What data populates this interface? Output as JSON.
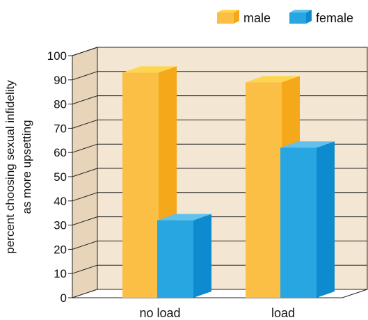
{
  "chart_data": {
    "type": "bar",
    "title": "",
    "categories": [
      "no load",
      "load"
    ],
    "series": [
      {
        "name": "male",
        "values": [
          93,
          89
        ],
        "color": "#FBBF45",
        "side_color": "#F5A81A",
        "top_color": "#FDD64E"
      },
      {
        "name": "female",
        "values": [
          32,
          62
        ],
        "color": "#27A6E2",
        "side_color": "#0E8BCF",
        "top_color": "#62C0EC"
      }
    ],
    "xlabel": "",
    "ylabel_lines": [
      "percent choosing sexual infidelity",
      "as more upsetting"
    ],
    "ylim": [
      0,
      100
    ],
    "yticks": [
      0,
      10,
      20,
      30,
      40,
      50,
      60,
      70,
      80,
      90,
      100
    ],
    "grid": true,
    "legend": "top-right",
    "colors": {
      "panel_back": "#F3E6D2",
      "panel_side": "#E8D4B8",
      "grid": "#222222"
    }
  }
}
